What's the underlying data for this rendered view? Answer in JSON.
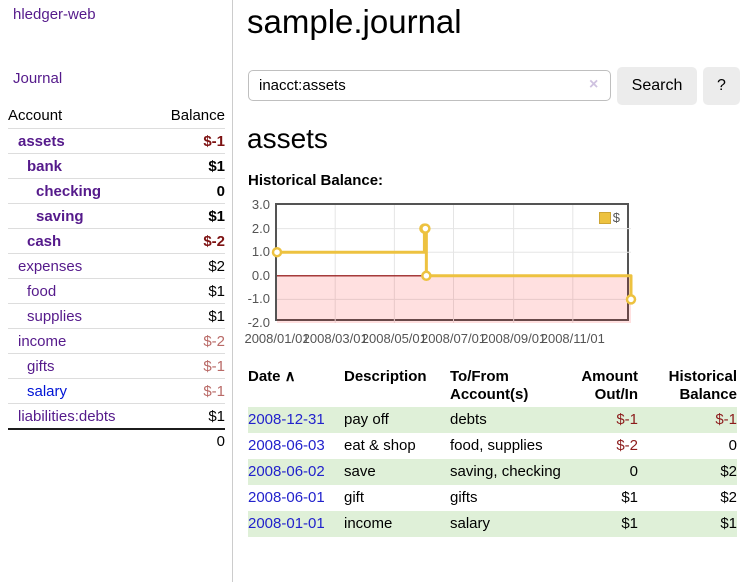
{
  "colors": {
    "link_purple": "#551a8b",
    "link_blue": "#0014d6",
    "date_link_blue": "#2222cc",
    "negative_dark_red": "#7d1212",
    "negative_muted_red": "#b96a67",
    "register_negative_red": "#8c1b1b",
    "row_stripe_green": "#dff0d8",
    "chart_line_gold": "#edc240",
    "chart_negative_fill": "rgba(255,0,0,0.12)",
    "chart_zero_line": "#8b0000",
    "chart_border": "#545454",
    "button_gray": "#ececec"
  },
  "sidebar": {
    "app_title": "hledger-web",
    "journal_link": "Journal",
    "accounts_table": {
      "headers": [
        "Account",
        "Balance"
      ],
      "rows": [
        {
          "name": "assets",
          "indent": 1,
          "bold": true,
          "balance": "$-1",
          "balance_style": "neg-dark",
          "link_color": "purple"
        },
        {
          "name": "bank",
          "indent": 2,
          "bold": true,
          "balance": "$1",
          "balance_style": "pos",
          "link_color": "purple"
        },
        {
          "name": "checking",
          "indent": 3,
          "bold": true,
          "balance": "0",
          "balance_style": "pos",
          "link_color": "purple"
        },
        {
          "name": "saving",
          "indent": 3,
          "bold": true,
          "balance": "$1",
          "balance_style": "pos",
          "link_color": "purple"
        },
        {
          "name": "cash",
          "indent": 2,
          "bold": true,
          "balance": "$-2",
          "balance_style": "neg-dark",
          "link_color": "purple"
        },
        {
          "name": "expenses",
          "indent": 1,
          "bold": false,
          "balance": "$2",
          "balance_style": "pos",
          "link_color": "purple"
        },
        {
          "name": "food",
          "indent": 2,
          "bold": false,
          "balance": "$1",
          "balance_style": "pos",
          "link_color": "purple"
        },
        {
          "name": "supplies",
          "indent": 2,
          "bold": false,
          "balance": "$1",
          "balance_style": "pos",
          "link_color": "purple"
        },
        {
          "name": "income",
          "indent": 1,
          "bold": false,
          "balance": "$-2",
          "balance_style": "neg-muted",
          "link_color": "purple"
        },
        {
          "name": "gifts",
          "indent": 2,
          "bold": false,
          "balance": "$-1",
          "balance_style": "neg-muted",
          "link_color": "purple"
        },
        {
          "name": "salary",
          "indent": 2,
          "bold": false,
          "balance": "$-1",
          "balance_style": "neg-muted",
          "link_color": "blue"
        },
        {
          "name": "liabilities:debts",
          "indent": 1,
          "bold": false,
          "balance": "$1",
          "balance_style": "pos",
          "link_color": "purple"
        }
      ],
      "total": "0"
    }
  },
  "header": {
    "title": "sample.journal"
  },
  "search": {
    "value": "inacct:assets",
    "clear_icon": "×",
    "search_label": "Search",
    "help_label": "?"
  },
  "account_page": {
    "heading": "assets",
    "chart_label": "Historical Balance:"
  },
  "chart_data": {
    "type": "line",
    "step": true,
    "title": "Historical Balance",
    "series": [
      {
        "name": "$",
        "x": [
          "2008-01-01",
          "2008-06-01",
          "2008-06-02",
          "2008-06-03",
          "2008-12-31"
        ],
        "values": [
          1,
          2,
          2,
          0,
          -1
        ]
      }
    ],
    "x_range": [
      "2008-01-01",
      "2008-12-31"
    ],
    "ylim": [
      -2.0,
      3.0
    ],
    "yticks": [
      3.0,
      2.0,
      1.0,
      0.0,
      -1.0,
      -2.0
    ],
    "ytick_labels": [
      "3.0",
      "2.0",
      "1.0",
      "0.0",
      "-1.0",
      "-2.0"
    ],
    "xtick_dates": [
      "2008-01-01",
      "2008-03-01",
      "2008-05-01",
      "2008-07-01",
      "2008-09-01",
      "2008-11-01"
    ],
    "xtick_labels": [
      "2008/01/01",
      "2008/03/01",
      "2008/05/01",
      "2008/07/01",
      "2008/09/01",
      "2008/11/01"
    ],
    "legend": [
      {
        "label": "$",
        "color": "#edc240"
      }
    ],
    "grid": true,
    "legend_position": "top-right",
    "negative_region_shaded": true
  },
  "register": {
    "headers": [
      {
        "key": "date",
        "lines": [
          "Date"
        ],
        "sort": "∧",
        "align": "left"
      },
      {
        "key": "description",
        "lines": [
          "Description"
        ],
        "align": "left"
      },
      {
        "key": "accounts",
        "lines": [
          "To/From",
          "Account(s)"
        ],
        "align": "left"
      },
      {
        "key": "amount",
        "lines": [
          "Amount",
          "Out/In"
        ],
        "align": "right"
      },
      {
        "key": "balance",
        "lines": [
          "Historical",
          "Balance"
        ],
        "align": "right"
      }
    ],
    "rows": [
      {
        "date": "2008-12-31",
        "description": "pay off",
        "accounts": "debts",
        "amount": "$-1",
        "amount_neg": true,
        "balance": "$-1",
        "balance_neg": true
      },
      {
        "date": "2008-06-03",
        "description": "eat & shop",
        "accounts": "food, supplies",
        "amount": "$-2",
        "amount_neg": true,
        "balance": "0",
        "balance_neg": false
      },
      {
        "date": "2008-06-02",
        "description": "save",
        "accounts": "saving, checking",
        "amount": "0",
        "amount_neg": false,
        "balance": "$2",
        "balance_neg": false
      },
      {
        "date": "2008-06-01",
        "description": "gift",
        "accounts": "gifts",
        "amount": "$1",
        "amount_neg": false,
        "balance": "$2",
        "balance_neg": false
      },
      {
        "date": "2008-01-01",
        "description": "income",
        "accounts": "salary",
        "amount": "$1",
        "amount_neg": false,
        "balance": "$1",
        "balance_neg": false
      }
    ]
  }
}
